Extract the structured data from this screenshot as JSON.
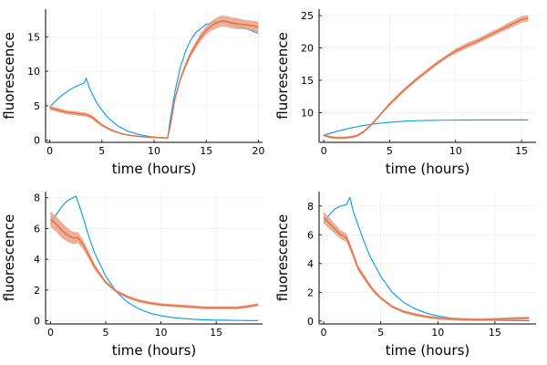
{
  "colors": {
    "model": "#009AF9",
    "data": "#E26F46",
    "band": "#E9A285",
    "grid": "#EBEBEB",
    "axis": "#000000"
  },
  "chart_data": [
    {
      "type": "line",
      "xlabel": "time (hours)",
      "ylabel": "fluorescence",
      "xlim": [
        -0.4,
        20.4
      ],
      "ylim": [
        -0.3,
        19
      ],
      "xticks": [
        0,
        5,
        10,
        15,
        20
      ],
      "xtick_labels": [
        "0",
        "5",
        "10",
        "15",
        "20"
      ],
      "yticks": [
        0,
        5,
        10,
        15
      ],
      "ytick_labels": [
        "0",
        "5",
        "10",
        "15"
      ],
      "grid": true,
      "legend": "none",
      "series": [
        {
          "kind": "model",
          "x": [
            0,
            0.5,
            1,
            1.5,
            2,
            2.5,
            3,
            3.3,
            3.5,
            3.8,
            4.5,
            5.5,
            6.5,
            7.5,
            8.5,
            9.5,
            10.5,
            11.3,
            11.5,
            12,
            12.5,
            13,
            13.5,
            14,
            15,
            16,
            17,
            18,
            19,
            20
          ],
          "y": [
            4.8,
            5.6,
            6.3,
            6.9,
            7.4,
            7.8,
            8.1,
            8.3,
            9.0,
            7.6,
            5.4,
            3.4,
            2.1,
            1.3,
            0.85,
            0.55,
            0.4,
            0.3,
            2.5,
            7.0,
            10.5,
            12.8,
            14.5,
            15.6,
            16.8,
            17.2,
            17.1,
            16.6,
            16.1,
            15.5
          ]
        },
        {
          "kind": "data",
          "x": [
            0,
            0.5,
            1,
            1.5,
            2,
            2.5,
            3,
            3.5,
            4,
            4.5,
            5,
            6,
            7,
            8,
            9,
            10,
            11,
            11.3,
            11.6,
            12,
            12.5,
            13,
            13.5,
            14,
            14.5,
            15,
            15.5,
            16,
            16.5,
            17,
            17.5,
            18,
            18.5,
            19,
            19.5,
            20
          ],
          "y": [
            4.7,
            4.5,
            4.3,
            4.1,
            4.0,
            3.9,
            3.8,
            3.7,
            3.4,
            2.8,
            2.2,
            1.4,
            0.9,
            0.65,
            0.5,
            0.4,
            0.35,
            0.3,
            2.5,
            6.0,
            8.8,
            10.8,
            12.5,
            13.8,
            15.0,
            15.9,
            16.6,
            17.0,
            17.3,
            17.2,
            17.0,
            16.9,
            16.8,
            16.7,
            16.6,
            16.4
          ],
          "err": [
            0.3,
            0.3,
            0.3,
            0.3,
            0.3,
            0.3,
            0.3,
            0.3,
            0.3,
            0.3,
            0.2,
            0.15,
            0.1,
            0.1,
            0.1,
            0.1,
            0.1,
            0.1,
            0.2,
            0.3,
            0.4,
            0.4,
            0.5,
            0.5,
            0.6,
            0.6,
            0.7,
            0.8,
            0.8,
            0.8,
            0.8,
            0.8,
            0.7,
            0.7,
            0.7,
            0.8
          ]
        }
      ]
    },
    {
      "type": "line",
      "xlabel": "time (hours)",
      "ylabel": "fluorescence",
      "xlim": [
        -0.35,
        16.1
      ],
      "ylim": [
        5.4,
        26
      ],
      "xticks": [
        0,
        5,
        10,
        15
      ],
      "xtick_labels": [
        "0",
        "5",
        "10",
        "15"
      ],
      "yticks": [
        10,
        15,
        20,
        25
      ],
      "ytick_labels": [
        "10",
        "15",
        "20",
        "25"
      ],
      "grid": true,
      "legend": "none",
      "series": [
        {
          "kind": "model",
          "x": [
            0,
            0.5,
            1,
            1.5,
            2,
            2.5,
            3,
            3.5,
            4,
            4.5,
            5,
            6,
            7,
            8,
            9,
            10,
            11,
            12,
            13,
            14,
            15,
            15.5
          ],
          "y": [
            6.5,
            6.8,
            7.1,
            7.35,
            7.6,
            7.8,
            8.0,
            8.15,
            8.3,
            8.4,
            8.5,
            8.65,
            8.75,
            8.8,
            8.82,
            8.84,
            8.85,
            8.86,
            8.86,
            8.87,
            8.87,
            8.87
          ]
        },
        {
          "kind": "data",
          "x": [
            0,
            0.5,
            1,
            1.5,
            2,
            2.5,
            3,
            3.5,
            4,
            4.5,
            5,
            5.5,
            6,
            6.5,
            7,
            7.5,
            8,
            8.5,
            9,
            9.5,
            10,
            10.5,
            11,
            11.5,
            12,
            12.5,
            13,
            13.5,
            14,
            14.5,
            15,
            15.5
          ],
          "y": [
            6.5,
            6.2,
            6.1,
            6.1,
            6.2,
            6.4,
            7.0,
            7.9,
            9.0,
            10.2,
            11.3,
            12.3,
            13.3,
            14.2,
            15.1,
            15.9,
            16.7,
            17.5,
            18.2,
            18.9,
            19.5,
            20.0,
            20.5,
            20.9,
            21.4,
            21.9,
            22.4,
            22.9,
            23.4,
            23.9,
            24.4,
            24.6
          ],
          "err": [
            0.2,
            0.2,
            0.2,
            0.2,
            0.2,
            0.2,
            0.2,
            0.2,
            0.2,
            0.2,
            0.3,
            0.3,
            0.3,
            0.3,
            0.3,
            0.3,
            0.3,
            0.3,
            0.3,
            0.3,
            0.4,
            0.4,
            0.4,
            0.4,
            0.4,
            0.4,
            0.4,
            0.4,
            0.5,
            0.5,
            0.5,
            0.5
          ]
        }
      ]
    },
    {
      "type": "line",
      "xlabel": "time (hours)",
      "ylabel": "fluorescence",
      "xlim": [
        -0.45,
        19.2
      ],
      "ylim": [
        -0.2,
        8.4
      ],
      "xticks": [
        0,
        5,
        10,
        15
      ],
      "xtick_labels": [
        "0",
        "5",
        "10",
        "15"
      ],
      "yticks": [
        0,
        2,
        4,
        6,
        8
      ],
      "ytick_labels": [
        "0",
        "2",
        "4",
        "6",
        "8"
      ],
      "grid": true,
      "legend": "none",
      "series": [
        {
          "kind": "model",
          "x": [
            0,
            0.5,
            1,
            1.5,
            2,
            2.3,
            2.6,
            3,
            3.5,
            4,
            5,
            6,
            7,
            8,
            9,
            10,
            11,
            12,
            13,
            14,
            15,
            16,
            17,
            18,
            18.8
          ],
          "y": [
            6.3,
            6.9,
            7.4,
            7.8,
            8.0,
            8.1,
            7.5,
            6.6,
            5.4,
            4.4,
            2.9,
            1.85,
            1.2,
            0.78,
            0.5,
            0.33,
            0.22,
            0.15,
            0.1,
            0.07,
            0.05,
            0.04,
            0.03,
            0.02,
            0.02
          ]
        },
        {
          "kind": "data",
          "x": [
            0,
            0.5,
            1,
            1.5,
            2,
            2.5,
            3,
            3.5,
            4,
            4.5,
            5,
            5.5,
            6,
            7,
            8,
            9,
            10,
            11,
            12,
            13,
            14,
            15,
            16,
            17,
            18,
            18.8
          ],
          "y": [
            6.6,
            6.3,
            5.9,
            5.6,
            5.4,
            5.4,
            4.9,
            4.2,
            3.5,
            3.0,
            2.5,
            2.2,
            1.9,
            1.55,
            1.3,
            1.15,
            1.05,
            1.0,
            0.95,
            0.9,
            0.85,
            0.85,
            0.85,
            0.85,
            0.95,
            1.05
          ],
          "err": [
            0.5,
            0.5,
            0.5,
            0.45,
            0.4,
            0.35,
            0.3,
            0.25,
            0.2,
            0.15,
            0.1,
            0.1,
            0.1,
            0.1,
            0.1,
            0.1,
            0.1,
            0.1,
            0.1,
            0.1,
            0.1,
            0.1,
            0.1,
            0.1,
            0.1,
            0.1
          ]
        }
      ]
    },
    {
      "type": "line",
      "xlabel": "time (hours)",
      "ylabel": "fluorescence",
      "xlim": [
        -0.4,
        18.6
      ],
      "ylim": [
        -0.2,
        9.0
      ],
      "xticks": [
        0,
        5,
        10,
        15
      ],
      "xtick_labels": [
        "0",
        "5",
        "10",
        "15"
      ],
      "yticks": [
        0,
        2,
        4,
        6,
        8
      ],
      "ytick_labels": [
        "0",
        "2",
        "4",
        "6",
        "8"
      ],
      "grid": true,
      "legend": "none",
      "series": [
        {
          "kind": "model",
          "x": [
            0,
            0.5,
            1,
            1.5,
            2,
            2.3,
            2.6,
            3,
            3.5,
            4,
            5,
            6,
            7,
            8,
            9,
            10,
            11,
            12,
            13,
            14,
            15,
            16,
            17,
            18
          ],
          "y": [
            6.8,
            7.4,
            7.8,
            8.0,
            8.1,
            8.6,
            7.6,
            6.7,
            5.6,
            4.6,
            3.1,
            2.0,
            1.3,
            0.85,
            0.55,
            0.35,
            0.23,
            0.15,
            0.1,
            0.07,
            0.05,
            0.04,
            0.03,
            0.02
          ]
        },
        {
          "kind": "data",
          "x": [
            0,
            0.5,
            1,
            1.5,
            2,
            2.5,
            3,
            3.5,
            4,
            4.5,
            5,
            6,
            7,
            8,
            9,
            10,
            11,
            12,
            13,
            14,
            15,
            16,
            17,
            18
          ],
          "y": [
            7.2,
            6.8,
            6.4,
            6.0,
            5.8,
            4.8,
            3.7,
            3.1,
            2.5,
            2.0,
            1.6,
            1.0,
            0.65,
            0.45,
            0.3,
            0.2,
            0.15,
            0.12,
            0.1,
            0.1,
            0.12,
            0.15,
            0.18,
            0.2
          ],
          "err": [
            0.4,
            0.4,
            0.35,
            0.3,
            0.3,
            0.25,
            0.2,
            0.2,
            0.15,
            0.15,
            0.1,
            0.1,
            0.1,
            0.1,
            0.1,
            0.1,
            0.1,
            0.1,
            0.1,
            0.1,
            0.1,
            0.1,
            0.1,
            0.1
          ]
        }
      ]
    }
  ]
}
